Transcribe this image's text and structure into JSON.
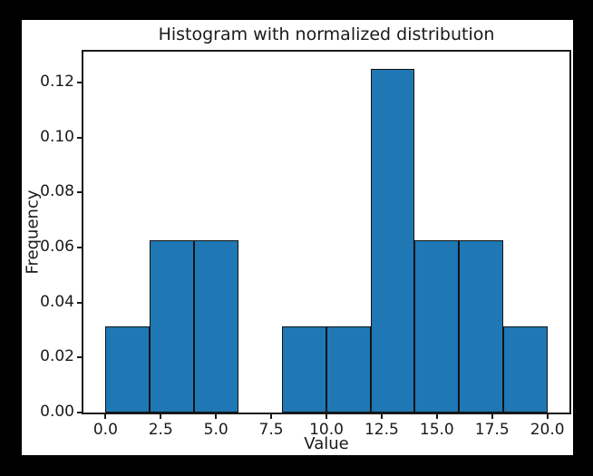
{
  "figure": {
    "surround_color": "#000000",
    "canvas_color": "#ffffff",
    "text_color": "#1a1a1a"
  },
  "chart_data": {
    "type": "bar",
    "subtype": "histogram",
    "title": "Histogram with normalized distribution",
    "xlabel": "Value",
    "ylabel": "Frequency",
    "bar_color": "#1f77b4",
    "bar_edge_color": "#131313",
    "grid": false,
    "legend": false,
    "xlim": [
      -1,
      21
    ],
    "ylim": [
      0,
      0.13125
    ],
    "x_ticks": [
      0.0,
      2.5,
      5.0,
      7.5,
      10.0,
      12.5,
      15.0,
      17.5,
      20.0
    ],
    "x_tick_labels": [
      "0.0",
      "2.5",
      "5.0",
      "7.5",
      "10.0",
      "12.5",
      "15.0",
      "17.5",
      "20.0"
    ],
    "y_ticks": [
      0.0,
      0.02,
      0.04,
      0.06,
      0.08,
      0.1,
      0.12
    ],
    "y_tick_labels": [
      "0.00",
      "0.02",
      "0.04",
      "0.06",
      "0.08",
      "0.10",
      "0.12"
    ],
    "bins": [
      {
        "x0": 0,
        "x1": 2,
        "density": 0.03125
      },
      {
        "x0": 2,
        "x1": 4,
        "density": 0.0625
      },
      {
        "x0": 4,
        "x1": 6,
        "density": 0.0625
      },
      {
        "x0": 6,
        "x1": 8,
        "density": 0.0
      },
      {
        "x0": 8,
        "x1": 10,
        "density": 0.03125
      },
      {
        "x0": 10,
        "x1": 12,
        "density": 0.03125
      },
      {
        "x0": 12,
        "x1": 14,
        "density": 0.125
      },
      {
        "x0": 14,
        "x1": 16,
        "density": 0.0625
      },
      {
        "x0": 16,
        "x1": 18,
        "density": 0.0625
      },
      {
        "x0": 18,
        "x1": 20,
        "density": 0.03125
      }
    ]
  }
}
